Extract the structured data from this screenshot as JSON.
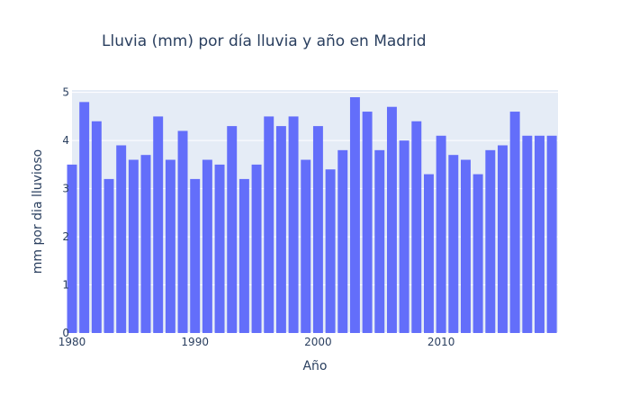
{
  "chart_data": {
    "type": "bar",
    "title": "Lluvia (mm) por día lluvia y año en Madrid",
    "xlabel": "Año",
    "ylabel": "mm por dia lluvioso",
    "x": [
      1980,
      1981,
      1982,
      1983,
      1984,
      1985,
      1986,
      1987,
      1988,
      1989,
      1990,
      1991,
      1992,
      1993,
      1994,
      1995,
      1996,
      1997,
      1998,
      1999,
      2000,
      2001,
      2002,
      2003,
      2004,
      2005,
      2006,
      2007,
      2008,
      2009,
      2010,
      2011,
      2012,
      2013,
      2014,
      2015,
      2016,
      2017,
      2018,
      2019
    ],
    "values": [
      3.5,
      4.8,
      4.4,
      3.2,
      3.9,
      3.6,
      3.7,
      4.5,
      3.6,
      4.2,
      3.2,
      3.6,
      3.5,
      4.3,
      3.2,
      3.5,
      4.5,
      4.3,
      4.5,
      3.6,
      4.3,
      3.4,
      3.8,
      4.9,
      4.6,
      3.8,
      4.7,
      4.0,
      4.4,
      3.3,
      4.1,
      3.7,
      3.6,
      3.3,
      3.8,
      3.9,
      4.6,
      4.1,
      4.1,
      4.1
    ],
    "xlim": [
      1980,
      2019.5
    ],
    "ylim": [
      0,
      5.05
    ],
    "x_ticks": [
      "1980",
      "1990",
      "2000",
      "2010"
    ],
    "y_ticks": [
      "0",
      "1",
      "2",
      "3",
      "4",
      "5"
    ],
    "grid": true,
    "legend": false,
    "colors": {
      "bar": "#636efa",
      "plot_background": "#e5ecf6",
      "gridline": "#ffffff",
      "text": "#2a3f5f"
    }
  }
}
